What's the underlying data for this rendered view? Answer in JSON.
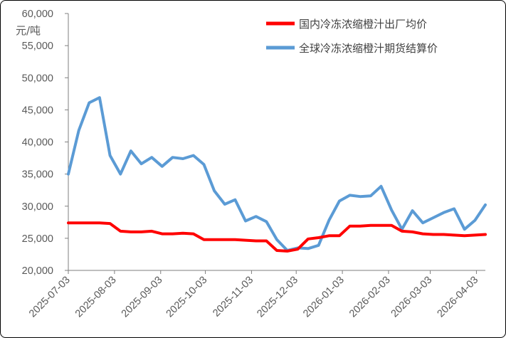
{
  "chart_data": {
    "type": "line",
    "unit_label": "元/吨",
    "ylim": [
      20000,
      60000
    ],
    "yticks": [
      20000,
      25000,
      30000,
      35000,
      40000,
      45000,
      50000,
      55000,
      60000
    ],
    "ytick_labels": [
      "20,000",
      "25,000",
      "30,000",
      "35,000",
      "40,000",
      "45,000",
      "50,000",
      "55,000",
      "60,000"
    ],
    "x": [
      "2025-07-03",
      "2025-07-10",
      "2025-07-17",
      "2025-07-24",
      "2025-07-31",
      "2025-08-07",
      "2025-08-14",
      "2025-08-21",
      "2025-08-28",
      "2025-09-04",
      "2025-09-11",
      "2025-09-18",
      "2025-09-25",
      "2025-10-02",
      "2025-10-09",
      "2025-10-16",
      "2025-10-23",
      "2025-10-30",
      "2025-11-06",
      "2025-11-13",
      "2025-11-20",
      "2025-11-27",
      "2025-12-04",
      "2025-12-11",
      "2025-12-18",
      "2025-12-25",
      "2026-01-01",
      "2026-01-08",
      "2026-01-15",
      "2026-01-22",
      "2026-01-29",
      "2026-02-05",
      "2026-02-12",
      "2026-02-19",
      "2026-02-26",
      "2026-03-05",
      "2026-03-12",
      "2026-03-19",
      "2026-03-26",
      "2026-04-02",
      "2026-04-09"
    ],
    "xtick_labels": [
      "2025-07-03",
      "2025-08-03",
      "2025-09-03",
      "2025-10-03",
      "2025-11-03",
      "2025-12-03",
      "2026-01-03",
      "2026-02-03",
      "2026-03-03",
      "2026-04-03"
    ],
    "grid": false,
    "legend_position": "top-right",
    "series": [
      {
        "name": "国内冷冻浓缩橙汁出厂均价",
        "color": "#ff0000",
        "values": [
          27400,
          27400,
          27400,
          27400,
          27300,
          26100,
          26000,
          26000,
          26100,
          25700,
          25700,
          25800,
          25700,
          24800,
          24800,
          24800,
          24800,
          24700,
          24600,
          24600,
          23100,
          23000,
          23300,
          24900,
          25100,
          25400,
          25400,
          26900,
          26900,
          27000,
          27000,
          27000,
          26100,
          26000,
          25700,
          25600,
          25600,
          25500,
          25400,
          25500,
          25600
        ]
      },
      {
        "name": "全球冷冻浓缩橙汁期货结算价",
        "color": "#5b9bd5",
        "values": [
          35000,
          41800,
          46100,
          46900,
          37900,
          35000,
          38600,
          36600,
          37600,
          36200,
          37600,
          37400,
          37900,
          36500,
          32400,
          30300,
          31000,
          27700,
          28400,
          27600,
          24800,
          23100,
          23500,
          23400,
          23900,
          27800,
          30800,
          31700,
          31500,
          31600,
          33100,
          29400,
          26400,
          29300,
          27400,
          28200,
          29000,
          29600,
          26400,
          27800,
          30200
        ]
      }
    ]
  }
}
